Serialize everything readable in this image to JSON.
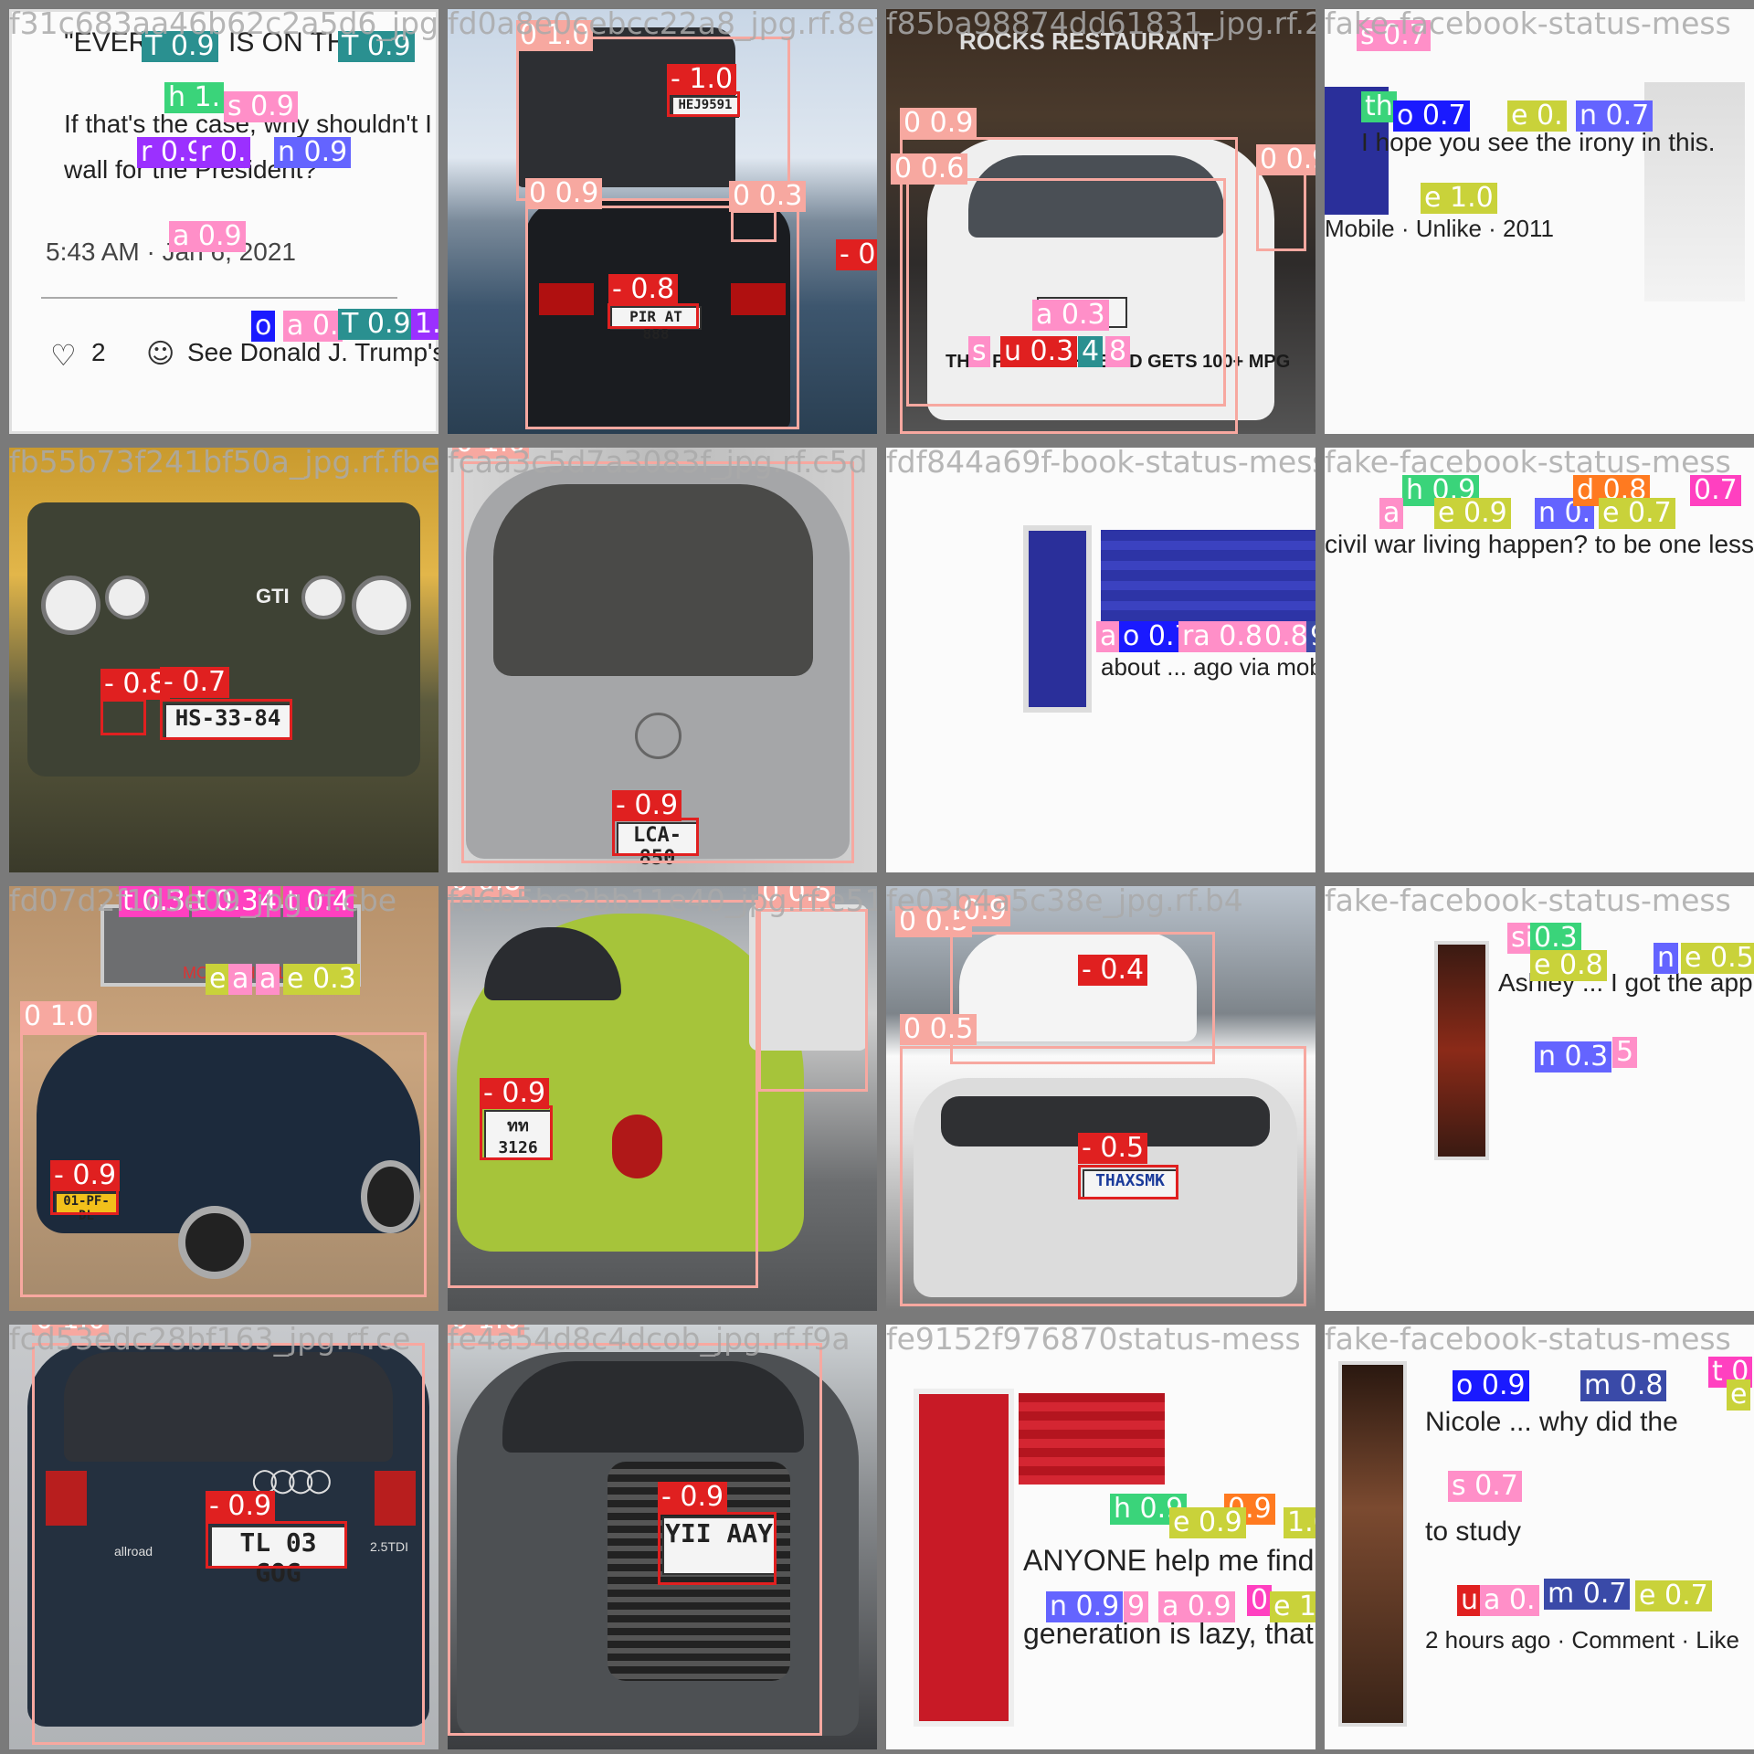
{
  "tiles": [
    {
      "id": "t0",
      "filename": "f31c683aa46b62c2a5d6_jpg.rf",
      "texts": [
        "\"EVERY",
        "IS ON THE",
        "If that's the case, why shouldn't I",
        "wall for the President?",
        "5:43 AM · Jan 6, 2021",
        "2",
        "See Donald J. Trump's"
      ],
      "labels": [
        "T 0.9",
        "T 0.9",
        "h 1.",
        "s 0.9",
        "r 0.9",
        "r 0.",
        "n 0.9",
        "a 0.9",
        "o",
        "a 0.",
        "T 0.9",
        "1.0"
      ]
    },
    {
      "id": "t1",
      "filename": "fd0a8e0cebcc22a8_jpg.rf.8ef8",
      "plates": [
        "HEJ9591",
        "PIR AT 888"
      ],
      "labels": [
        "0 1.0",
        "- 1.0",
        "0 0.9",
        "0 0.3",
        "- 0.8",
        "- 0.7"
      ]
    },
    {
      "id": "t2",
      "filename": "f85ba98874dd61831_jpg.rf.20",
      "texts": [
        "ROCKS RESTAURANT",
        "THIS PLUG-IN HYBRID GETS 100+ MPG"
      ],
      "plates": [
        "OK"
      ],
      "labels": [
        "0 0.9",
        "0 0.6",
        "0 0.9",
        "a 0.3",
        "s",
        "u 0.3",
        "4",
        "8"
      ]
    },
    {
      "id": "t3",
      "filename": "fake-facebook-status-mess",
      "texts": [
        "I hope you see the irony in this.",
        "Mobile · Unlike · 2011"
      ],
      "labels": [
        "s 0.7",
        "th",
        "o 0.7",
        "e 0.",
        "n 0.7",
        "e 1.0"
      ]
    },
    {
      "id": "t4",
      "filename": "fb55b73f241bf50a_jpg.rf.fbe",
      "plates": [
        "HS-33-84"
      ],
      "texts": [
        "GTI"
      ],
      "labels": [
        "- 0.8",
        "- 0.7",
        "e 0.9",
        "a 0.7",
        "e 0.8"
      ]
    },
    {
      "id": "t5",
      "filename": "fcaa3c5d7a3083f_jpg.rf.c5d",
      "plates": [
        "LCA-850"
      ],
      "labels": [
        "0 1.0",
        "- 0.9"
      ]
    },
    {
      "id": "t6",
      "filename": "fdf844a69f-book-status-messages",
      "texts": [
        "about ... ago via mobile"
      ],
      "labels": [
        "a",
        "o 0.7",
        "ra 0.8",
        "0.8",
        "9"
      ]
    },
    {
      "id": "t7",
      "filename": "fake-facebook-status-mess",
      "texts": [
        "civil war living happen? to be one less thing"
      ],
      "labels": [
        "h 0.9",
        "a",
        "e 0.9",
        "n 0.",
        "d 0.8",
        "e 0.7",
        "0.7"
      ]
    },
    {
      "id": "t8",
      "filename": "fd07d2f1d5e09_jpg.rf.cbe",
      "plates": [
        "01-PF-DL"
      ],
      "texts": [
        "MOTORHENL"
      ],
      "labels": [
        "t 0.3",
        "t 0.3",
        "4",
        "t 0.4",
        "e",
        "a",
        "a",
        "e 0.3",
        "0 1.0",
        "- 0.9"
      ]
    },
    {
      "id": "t9",
      "filename": "fd6b5be2bb11e40_jpg.rf.e51",
      "plates": [
        "ทท 3126"
      ],
      "labels": [
        "0 0.8",
        "0 0.5",
        "- 0.9"
      ]
    },
    {
      "id": "t10",
      "filename": "fe03b4a5c38e_jpg.rf.b4",
      "plates": [
        "THAXSMK"
      ],
      "labels": [
        "0 0.5",
        "0.9",
        "- 0.4",
        "0 0.5",
        "- 0.5"
      ]
    },
    {
      "id": "t11",
      "filename": "fake-facebook-status-mess",
      "texts": [
        "Ashley ... I got the app"
      ],
      "labels": [
        "si",
        "0.3",
        "e 0.8",
        "n",
        "e 0.5",
        "n 0.3",
        "5"
      ]
    },
    {
      "id": "t12",
      "filename": "fcd53edc28bf163_jpg.rf.ce",
      "plates": [
        "TL 03 GOG"
      ],
      "texts": [
        "2.5TDI",
        "allroad"
      ],
      "labels": [
        "0 1.0",
        "- 0.9"
      ]
    },
    {
      "id": "t13",
      "filename": "fe4a54d8c4dcob_jpg.rf.f9a",
      "plates": [
        "YII AAY"
      ],
      "labels": [
        "0 1.0",
        "- 0.9"
      ]
    },
    {
      "id": "t14",
      "filename": "fe9152f976870status-mess",
      "texts": [
        "ANYONE help me find articles",
        "generation is lazy, that are e"
      ],
      "labels": [
        "h 0.9",
        "0.9",
        "e 0.9",
        "1.0",
        "n 0.9",
        "9",
        "a 0.9",
        "0",
        "e 1.0"
      ]
    },
    {
      "id": "t15",
      "filename": "fake-facebook-status-mess",
      "texts": [
        "Nicole ... why did the",
        "to study",
        "2 hours ago · Comment · Like"
      ],
      "labels": [
        "o 0.9",
        "m 0.8",
        "t 0",
        "e",
        "s 0.7",
        "u",
        "a 0.",
        "m 0.7",
        "e 0.7"
      ]
    }
  ]
}
